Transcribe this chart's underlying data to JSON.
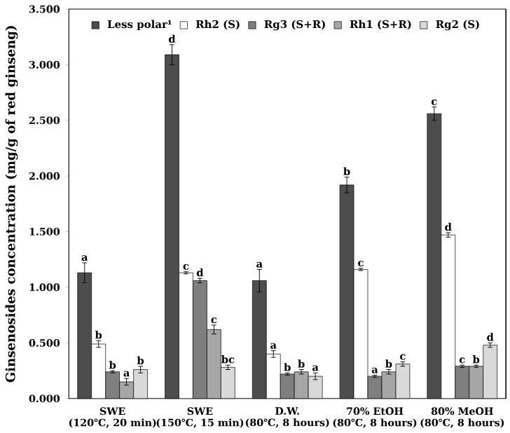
{
  "chart_data": {
    "type": "bar",
    "ylabel": "Ginsenosides concentration (mg/g of red ginseng)",
    "categories": [
      "SWE\n(120℃, 20 min)",
      "SWE\n(150℃, 15 min)",
      "D.W.\n(80℃, 8 hours)",
      "70% EtOH\n(80℃, 8 hours)",
      "80% MeOH\n(80℃, 8 hours)"
    ],
    "series": [
      {
        "name": "Less polar¹",
        "color": "#4d4d4d",
        "values": [
          1.13,
          3.09,
          1.06,
          1.92,
          2.56
        ],
        "errors": [
          0.09,
          0.09,
          0.1,
          0.07,
          0.06
        ],
        "value_labels": [
          "a",
          "d",
          "a",
          "b",
          "c"
        ]
      },
      {
        "name": "Rh2 (S)",
        "color": "#ffffff",
        "values": [
          0.49,
          1.13,
          0.4,
          1.16,
          1.47
        ],
        "errors": [
          0.03,
          0.01,
          0.03,
          0.01,
          0.02
        ],
        "value_labels": [
          "b",
          "c",
          "a",
          "c",
          "d"
        ]
      },
      {
        "name": "Rg3 (S+R)",
        "color": "#7f7f7f",
        "values": [
          0.24,
          1.06,
          0.22,
          0.2,
          0.29
        ],
        "errors": [
          0.01,
          0.02,
          0.01,
          0.01,
          0.01
        ],
        "value_labels": [
          "b",
          "d",
          "b",
          "a",
          "c"
        ]
      },
      {
        "name": "Rh1 (S+R)",
        "color": "#a6a6a6",
        "values": [
          0.15,
          0.62,
          0.24,
          0.24,
          0.29
        ],
        "errors": [
          0.03,
          0.04,
          0.02,
          0.02,
          0.01
        ],
        "value_labels": [
          "a",
          "c",
          "b",
          "b",
          "b"
        ]
      },
      {
        "name": "Rg2 (S)",
        "color": "#d9d9d9",
        "values": [
          0.26,
          0.28,
          0.2,
          0.31,
          0.48
        ],
        "errors": [
          0.03,
          0.02,
          0.03,
          0.02,
          0.02
        ],
        "value_labels": [
          "b",
          "bc",
          "a",
          "c",
          "d"
        ]
      }
    ],
    "ylim": [
      0,
      3.5
    ],
    "yticks": [
      {
        "value": 0,
        "label": "0.000"
      },
      {
        "value": 0.5,
        "label": "0.500"
      },
      {
        "value": 1,
        "label": "1.000"
      },
      {
        "value": 1.5,
        "label": "1.500"
      },
      {
        "value": 2,
        "label": "2.000"
      },
      {
        "value": 2.5,
        "label": "2.500"
      },
      {
        "value": 3,
        "label": "3.000"
      },
      {
        "value": 3.5,
        "label": "3.500"
      }
    ],
    "legend": "top"
  }
}
